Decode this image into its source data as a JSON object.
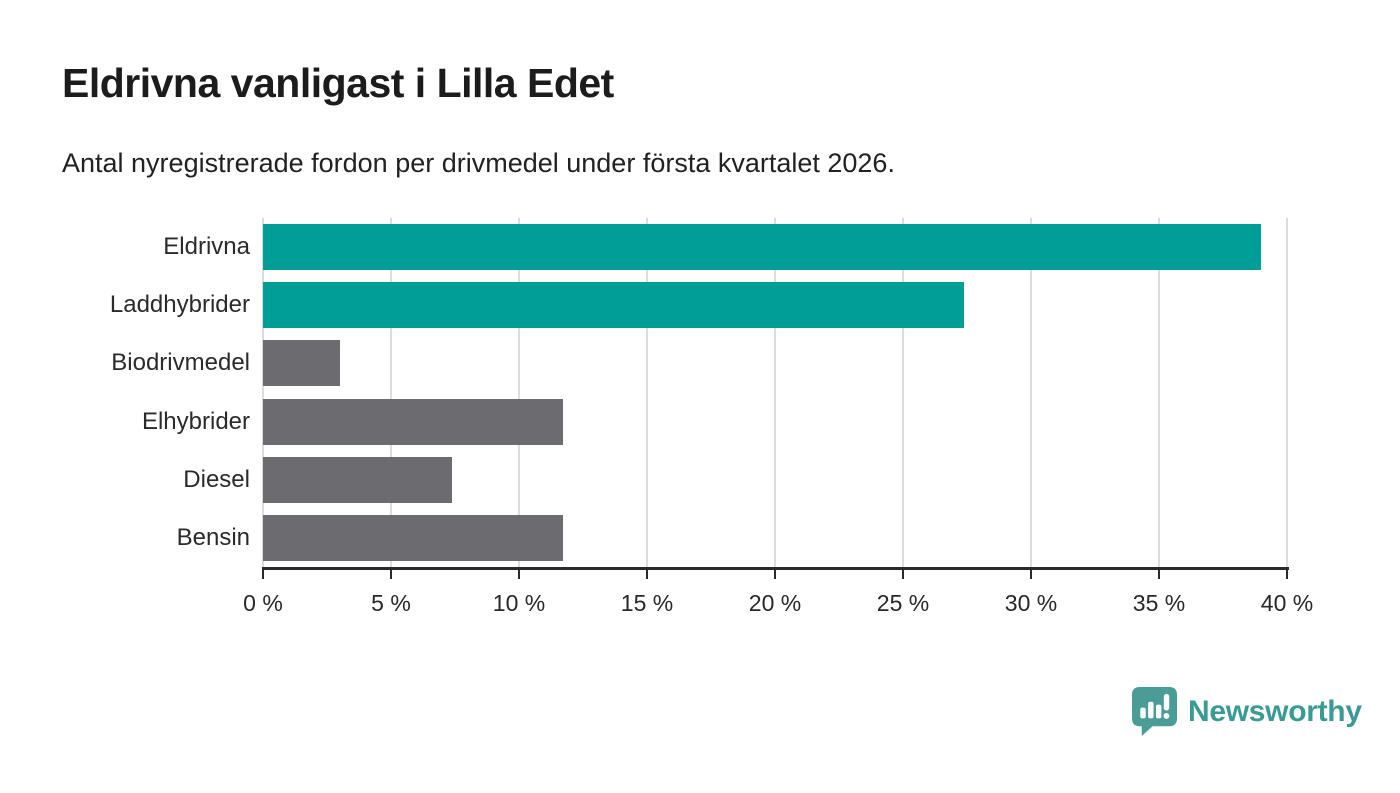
{
  "header": {
    "title": "Eldrivna vanligast i Lilla Edet",
    "subtitle": "Antal nyregistrerade fordon per drivmedel under första kvartalet 2026."
  },
  "chart_data": {
    "type": "bar",
    "orientation": "horizontal",
    "title": "Eldrivna vanligast i Lilla Edet",
    "subtitle": "Antal nyregistrerade fordon per drivmedel under första kvartalet 2026.",
    "categories": [
      "Eldrivna",
      "Laddhybrider",
      "Biodrivmedel",
      "Elhybrider",
      "Diesel",
      "Bensin"
    ],
    "values": [
      39.0,
      27.4,
      3.0,
      11.7,
      7.4,
      11.7
    ],
    "unit": "%",
    "bar_colors": [
      "#009e96",
      "#009e96",
      "#6c6b70",
      "#6c6b70",
      "#6c6b70",
      "#6c6b70"
    ],
    "highlight_color": "#009e96",
    "default_color": "#6c6b70",
    "xlim": [
      0,
      40
    ],
    "x_ticks": [
      0,
      5,
      10,
      15,
      20,
      25,
      30,
      35,
      40
    ],
    "x_tick_labels": [
      "0 %",
      "5 %",
      "10 %",
      "15 %",
      "20 %",
      "25 %",
      "30 %",
      "35 %",
      "40 %"
    ],
    "grid": "vertical-gridlines-on",
    "gridline_color": "#dcdcdc",
    "axis_color": "#2b2b2b",
    "legend": "none"
  },
  "footer": {
    "brand": "Newsworthy",
    "brand_color": "#3a9a94",
    "icon": "newsworthy-speech-bubble-bar-chart-icon"
  }
}
